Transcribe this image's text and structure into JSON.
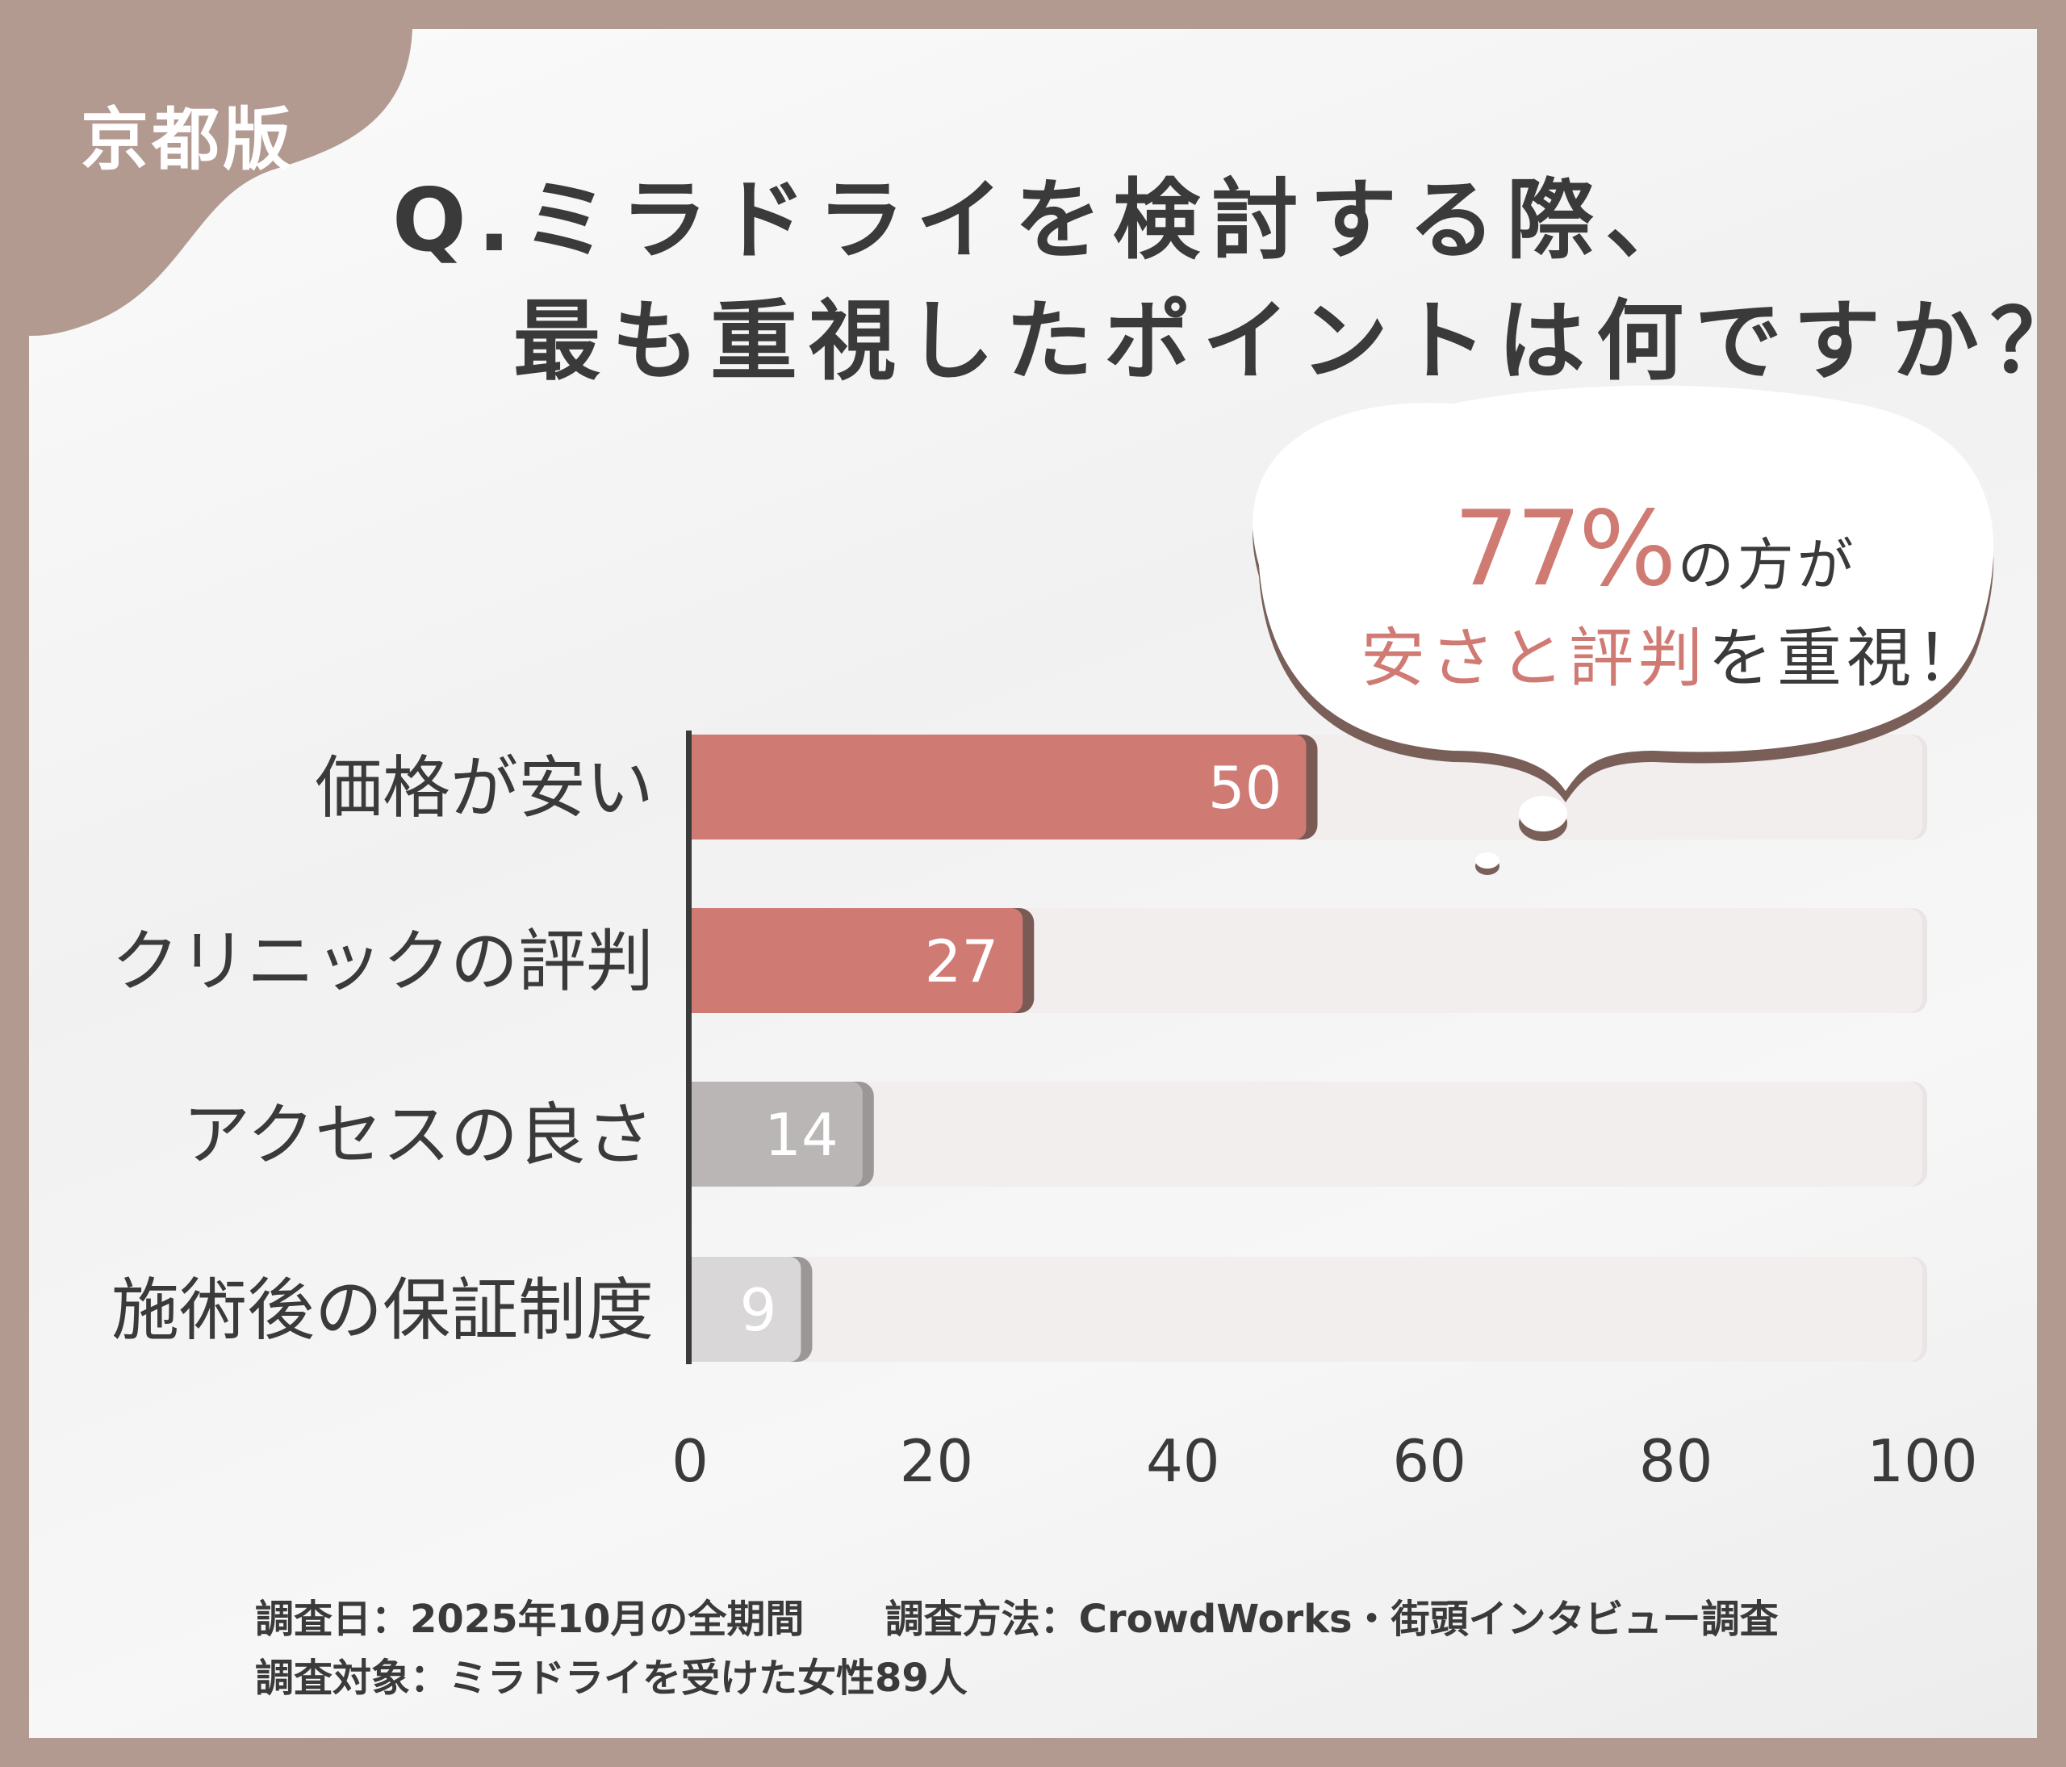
{
  "badge": "京都版",
  "title": {
    "line1": "Q.ミラドライを検討する際、",
    "line2": "最も重視したポイントは何ですか？"
  },
  "callout": {
    "percent": "77%",
    "line1_rest": "の方が",
    "line2_highlight": "安さと評判",
    "line2_rest": "を重視！"
  },
  "chart_data": {
    "type": "bar",
    "orientation": "horizontal",
    "categories": [
      "価格が安い",
      "クリニックの評判",
      "アクセスの良さ",
      "施術後の保証制度"
    ],
    "values": [
      50,
      27,
      14,
      9
    ],
    "xlim": [
      0,
      100
    ],
    "xticks": [
      "0",
      "20",
      "40",
      "60",
      "80",
      "100"
    ],
    "bar_colors": [
      "#d07a74",
      "#d07a74",
      "#b9b6b5",
      "#d9d7d8"
    ],
    "track_color": "#f2eeed",
    "grid": false
  },
  "footer": {
    "date": "調査日：2025年10月の全期間",
    "method": "調査方法：CrowdWorks・街頭インタビュー調査",
    "target": "調査対象：ミラドライを受けた女性89人"
  },
  "colors": {
    "frame": "#b39a91",
    "accent": "#d07a74",
    "text": "#3a3a3a"
  }
}
